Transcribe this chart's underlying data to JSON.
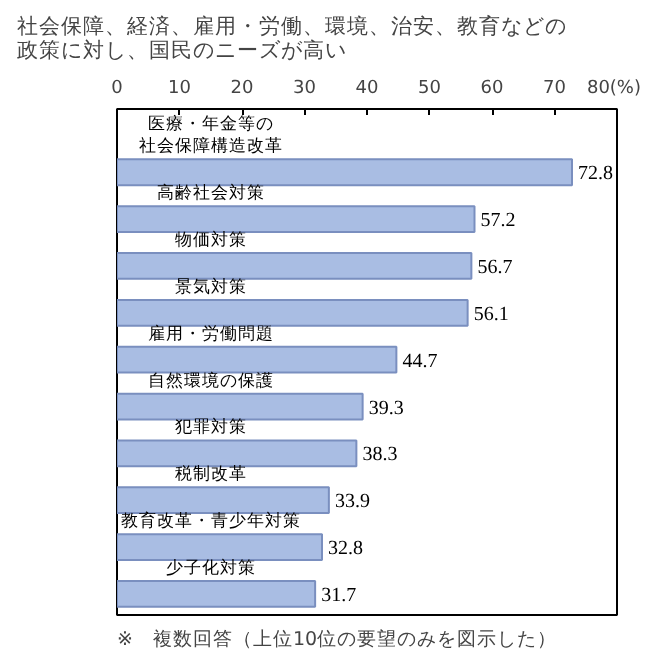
{
  "chart_data": {
    "type": "bar",
    "orientation": "horizontal",
    "title": "社会保障、経済、雇用・労働、環境、治安、教育などの政策に対し、国民のニーズが高い",
    "categories": [
      "医療・年金等の社会保障構造改革",
      "高齢社会対策",
      "物価対策",
      "景気対策",
      "雇用・労働問題",
      "自然環境の保護",
      "犯罪対策",
      "税制改革",
      "教育改革・青少年対策",
      "少子化対策"
    ],
    "values": [
      72.8,
      57.2,
      56.7,
      56.1,
      44.7,
      39.3,
      38.3,
      33.9,
      32.8,
      31.7
    ],
    "color": "#a9bde3",
    "data_labels": true,
    "grid": false,
    "xlim": [
      0,
      80
    ],
    "xticks": [
      0,
      10,
      20,
      30,
      40,
      50,
      60,
      70,
      {
        "value": 80,
        "label": "80(%)"
      }
    ],
    "annotations": [
      "※　複数回答（上位10位の要望のみを図示した）"
    ]
  }
}
